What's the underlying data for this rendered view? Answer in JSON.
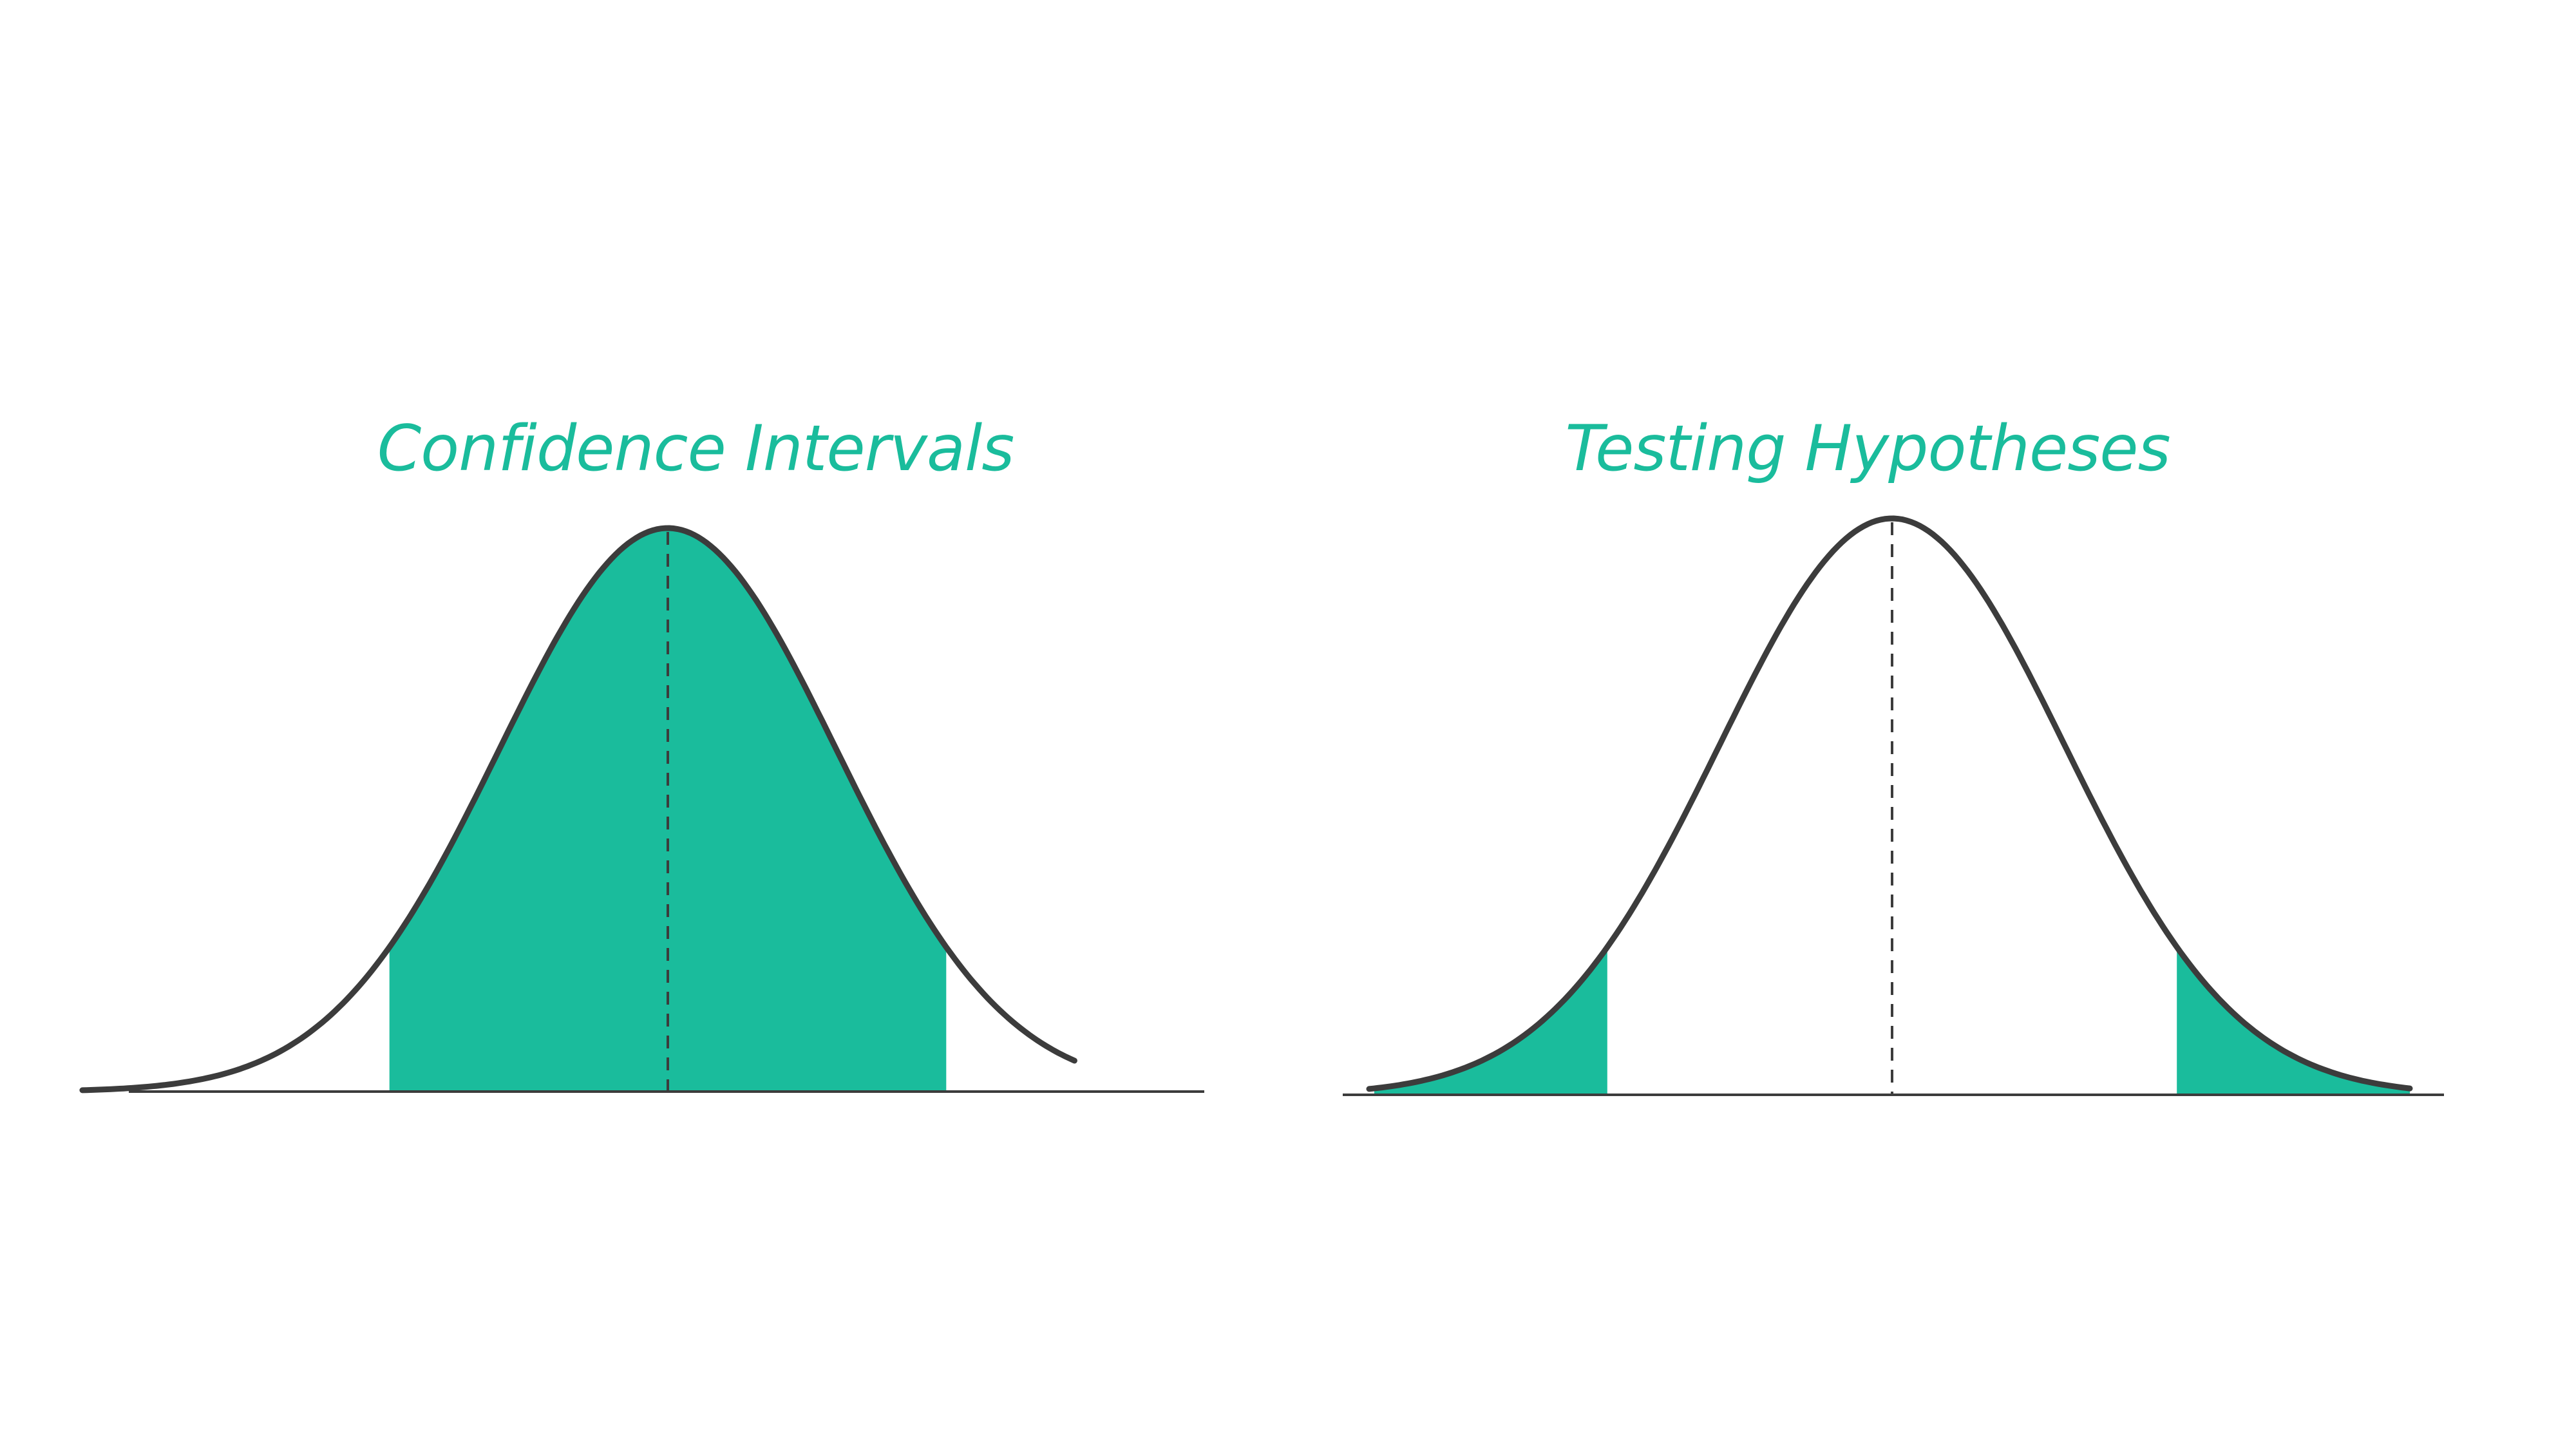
{
  "colors": {
    "accent": "#1abc9c",
    "curve": "#3c3c3c",
    "axis": "#3c3c3c",
    "background": "#ffffff"
  },
  "panels": [
    {
      "id": "confidence-intervals",
      "title": "Confidence Intervals",
      "shading": "center",
      "shaded_region_z": [
        -1.65,
        1.65
      ]
    },
    {
      "id": "testing-hypotheses",
      "title": "Testing Hypotheses",
      "shading": "tails",
      "shaded_region_z": [
        [
          -3.0,
          -1.65
        ],
        [
          1.65,
          3.0
        ]
      ]
    }
  ]
}
